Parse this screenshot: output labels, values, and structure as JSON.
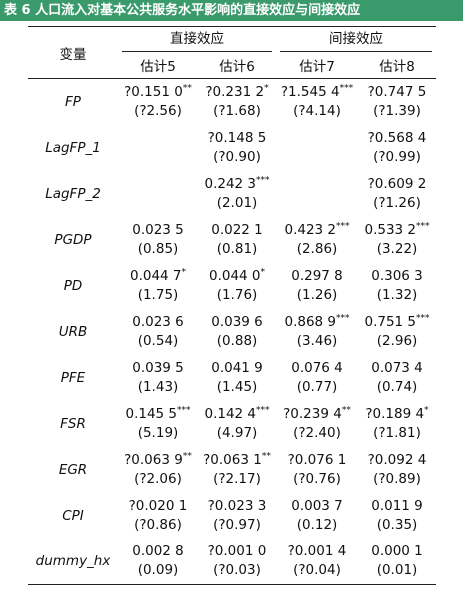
{
  "title": "表 6 人口流入对基本公共服务水平影响的直接效应与间接效应",
  "table": {
    "header": {
      "variable": "变量",
      "groups": [
        "直接效应",
        "间接效应"
      ],
      "columns": [
        "估计5",
        "估计6",
        "估计7",
        "估计8"
      ]
    },
    "rows": [
      {
        "name": "FP",
        "cells": [
          {
            "value": "?0.151 0",
            "stars": "**",
            "se": "(?2.56)"
          },
          {
            "value": "?0.231 2",
            "stars": "*",
            "se": "(?1.68)"
          },
          {
            "value": "?1.545 4",
            "stars": "***",
            "se": "(?4.14)"
          },
          {
            "value": "?0.747 5",
            "se": "(?1.39)"
          }
        ]
      },
      {
        "name": "LagFP_1",
        "cells": [
          null,
          {
            "value": "?0.148 5",
            "se": "(?0.90)"
          },
          null,
          {
            "value": "?0.568 4",
            "se": "(?0.99)"
          }
        ]
      },
      {
        "name": "LagFP_2",
        "cells": [
          null,
          {
            "value": "0.242 3",
            "stars": "***",
            "se": "(2.01)"
          },
          null,
          {
            "value": "?0.609 2",
            "se": "(?1.26)"
          }
        ]
      },
      {
        "name": "PGDP",
        "cells": [
          {
            "value": "0.023 5",
            "se": "(0.85)"
          },
          {
            "value": "0.022 1",
            "se": "(0.81)"
          },
          {
            "value": "0.423 2",
            "stars": "***",
            "se": "(2.86)"
          },
          {
            "value": "0.533 2",
            "stars": "***",
            "se": "(3.22)"
          }
        ]
      },
      {
        "name": "PD",
        "cells": [
          {
            "value": "0.044 7",
            "stars": "*",
            "se": "(1.75)"
          },
          {
            "value": "0.044 0",
            "stars": "*",
            "se": "(1.76)"
          },
          {
            "value": "0.297 8",
            "se": "(1.26)"
          },
          {
            "value": "0.306 3",
            "se": "(1.32)"
          }
        ]
      },
      {
        "name": "URB",
        "cells": [
          {
            "value": "0.023 6",
            "se": "(0.54)"
          },
          {
            "value": "0.039 6",
            "se": "(0.88)"
          },
          {
            "value": "0.868 9",
            "stars": "***",
            "se": "(3.46)"
          },
          {
            "value": "0.751 5",
            "stars": "***",
            "se": "(2.96)"
          }
        ]
      },
      {
        "name": "PFE",
        "cells": [
          {
            "value": "0.039 5",
            "se": "(1.43)"
          },
          {
            "value": "0.041 9",
            "se": "(1.45)"
          },
          {
            "value": "0.076 4",
            "se": "(0.77)"
          },
          {
            "value": "0.073 4",
            "se": "(0.74)"
          }
        ]
      },
      {
        "name": "FSR",
        "cells": [
          {
            "value": "0.145 5",
            "stars": "***",
            "se": "(5.19)"
          },
          {
            "value": "0.142 4",
            "stars": "***",
            "se": "(4.97)"
          },
          {
            "value": "?0.239 4",
            "stars": "**",
            "se": "(?2.40)"
          },
          {
            "value": "?0.189 4",
            "stars": "*",
            "se": "(?1.81)"
          }
        ]
      },
      {
        "name": "EGR",
        "cells": [
          {
            "value": "?0.063 9",
            "stars": "**",
            "se": "(?2.06)"
          },
          {
            "value": "?0.063 1",
            "stars": "**",
            "se": "(?2.17)"
          },
          {
            "value": "?0.076 1",
            "se": "(?0.76)"
          },
          {
            "value": "?0.092 4",
            "se": "(?0.89)"
          }
        ]
      },
      {
        "name": "CPI",
        "cells": [
          {
            "value": "?0.020 1",
            "se": "(?0.86)"
          },
          {
            "value": "?0.023 3",
            "se": "(?0.97)"
          },
          {
            "value": "0.003 7",
            "se": "(0.12)"
          },
          {
            "value": "0.011 9",
            "se": "(0.35)"
          }
        ]
      },
      {
        "name": "dummy_hx",
        "cells": [
          {
            "value": "0.002 8",
            "se": "(0.09)"
          },
          {
            "value": "?0.001 0",
            "se": "(?0.03)"
          },
          {
            "value": "?0.001 4",
            "se": "(?0.04)"
          },
          {
            "value": "0.000 1",
            "se": "(0.01)"
          }
        ]
      }
    ]
  }
}
